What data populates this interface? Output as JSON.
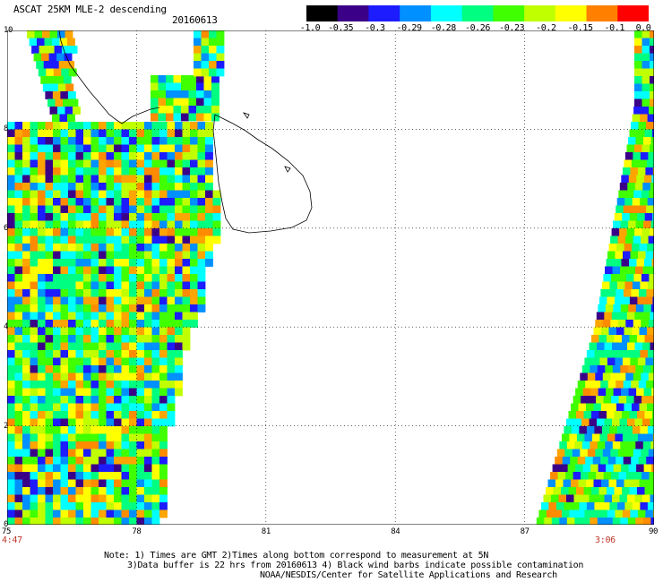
{
  "header": {
    "title": "ASCAT 25KM MLE-2 descending",
    "date": "20160613"
  },
  "colorbar": {
    "labels": [
      "-1.0",
      "-0.35",
      "-0.3",
      "-0.29",
      "-0.28",
      "-0.26",
      "-0.23",
      "-0.2",
      "-0.15",
      "-0.1",
      "0.0"
    ],
    "colors": [
      "#000000",
      "#3a0088",
      "#1c1cff",
      "#0090ff",
      "#00ffff",
      "#00ff80",
      "#40ff00",
      "#c0ff00",
      "#ffff00",
      "#ff8000",
      "#ff0000"
    ]
  },
  "map": {
    "lon_labels": [
      "75",
      "78",
      "81",
      "84",
      "87",
      "90"
    ],
    "lat_labels": [
      "10",
      "8",
      "6",
      "4",
      "2",
      "0"
    ],
    "lon_range": [
      75,
      90
    ],
    "lat_range": [
      0,
      10
    ],
    "grid": "dotted",
    "swath_colors": [
      "#3a0088",
      "#1c1cff",
      "#0090ff",
      "#00ffff",
      "#00ff80",
      "#40ff00",
      "#c0ff00",
      "#ffff00",
      "#ffa500",
      "#ff8c00"
    ]
  },
  "times": {
    "left": "4:47",
    "right": "3:06"
  },
  "notes": {
    "line1": "Note: 1) Times are GMT 2)Times along bottom correspond to measurement at 5N",
    "line2": "3)Data buffer is 22 hrs from 20160613 4) Black wind barbs indicate possible contamination",
    "line3": "NOAA/NESDIS/Center for Satellite Applications and Research"
  }
}
